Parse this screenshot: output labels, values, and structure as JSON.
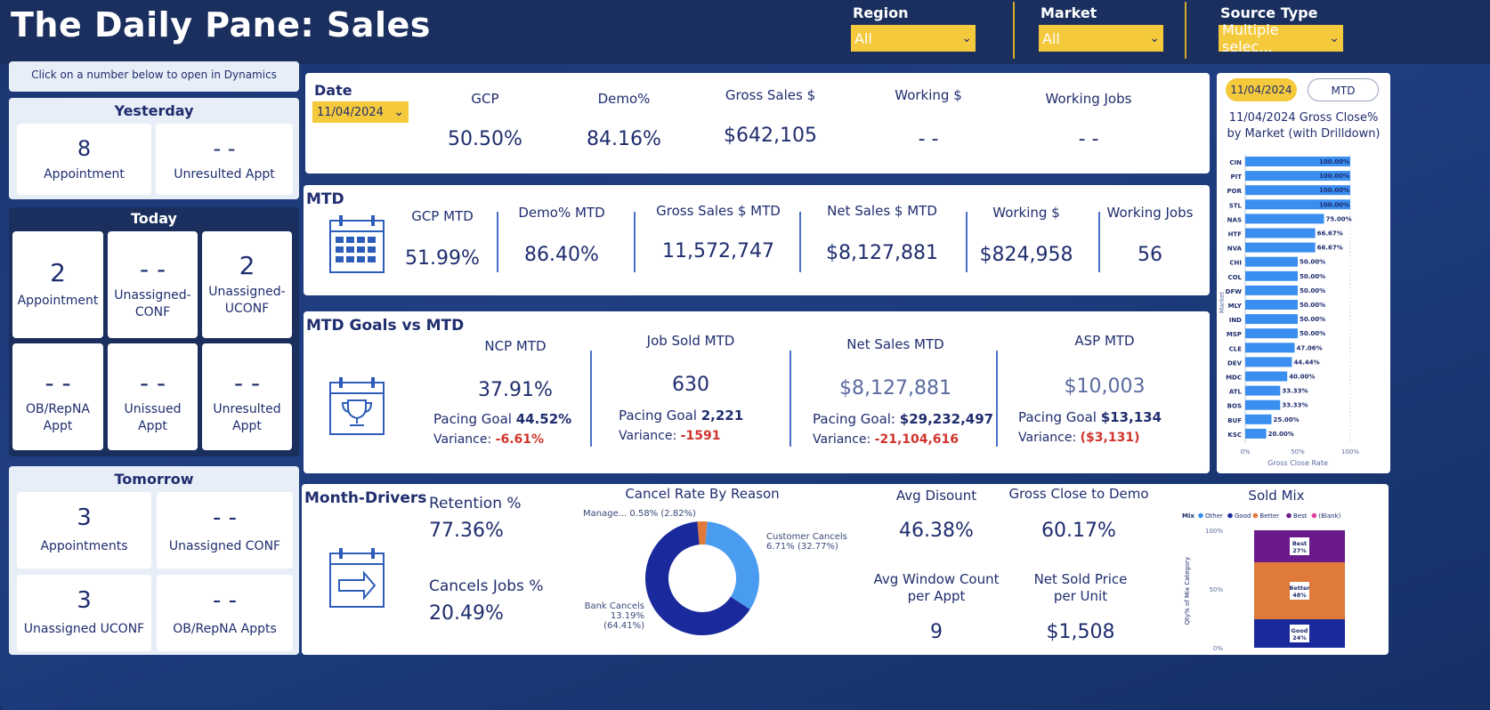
{
  "header": {
    "title": "The Daily Pane: Sales",
    "filters": [
      {
        "label": "Region",
        "value": "All"
      },
      {
        "label": "Market",
        "value": "All"
      },
      {
        "label": "Source Type",
        "value": "Multiple selec..."
      }
    ]
  },
  "left": {
    "hint": "Click on a number below to open in Dynamics",
    "yesterday": {
      "title": "Yesterday",
      "tiles": [
        {
          "value": "8",
          "label": "Appointment"
        },
        {
          "value": "- -",
          "label": "Unresulted Appt"
        }
      ]
    },
    "today": {
      "title": "Today",
      "tiles": [
        {
          "value": "2",
          "label": "Appointment"
        },
        {
          "value": "- -",
          "label": "Unassigned-\nCONF",
          "l1": "Unassigned-",
          "l2": "CONF"
        },
        {
          "value": "2",
          "label": "Unassigned-\nUCONF",
          "l1": "Unassigned-",
          "l2": "UCONF"
        },
        {
          "value": "- -",
          "l1": "OB/RepNA",
          "l2": "Appt"
        },
        {
          "value": "- -",
          "l1": "Unissued",
          "l2": "Appt"
        },
        {
          "value": "- -",
          "l1": "Unresulted",
          "l2": "Appt"
        }
      ]
    },
    "tomorrow": {
      "title": "Tomorrow",
      "tiles": [
        {
          "value": "3",
          "label": "Appointments"
        },
        {
          "value": "- -",
          "label": "Unassigned CONF"
        },
        {
          "value": "3",
          "label": "Unassigned UCONF"
        },
        {
          "value": "- -",
          "label": "OB/RepNA Appts"
        }
      ]
    }
  },
  "daily": {
    "date_label": "Date",
    "date_value": "11/04/2024",
    "kpis": [
      {
        "label": "GCP",
        "value": "50.50%"
      },
      {
        "label": "Demo%",
        "value": "84.16%"
      },
      {
        "label": "Gross Sales $",
        "value": "$642,105"
      },
      {
        "label": "Working $",
        "value": "- -"
      },
      {
        "label": "Working Jobs",
        "value": "- -"
      }
    ]
  },
  "mtd": {
    "title": "MTD",
    "kpis": [
      {
        "label": "GCP MTD",
        "value": "51.99%"
      },
      {
        "label": "Demo% MTD",
        "value": "86.40%"
      },
      {
        "label": "Gross Sales $ MTD",
        "value": "11,572,747"
      },
      {
        "label": "Net Sales $ MTD",
        "value": "$8,127,881"
      },
      {
        "label": "Working $",
        "value": "$824,958"
      },
      {
        "label": "Working Jobs",
        "value": "56"
      }
    ]
  },
  "goals": {
    "title": "MTD Goals vs MTD",
    "pacing_label": "Pacing Goal",
    "pacing_label_colon": "Pacing Goal:",
    "variance_label": "Variance:",
    "items": [
      {
        "label": "NCP MTD",
        "value": "37.91%",
        "pacing": "44.52%",
        "variance": "-6.61%"
      },
      {
        "label": "Job Sold MTD",
        "value": "630",
        "pacing": "2,221",
        "variance": "-1591"
      },
      {
        "label": "Net Sales MTD",
        "value": "$8,127,881",
        "pacing": "$29,232,497",
        "variance": "-21,104,616"
      },
      {
        "label": "ASP MTD",
        "value": "$10,003",
        "pacing": "$13,134",
        "variance": "($3,131)"
      }
    ]
  },
  "drivers": {
    "title": "Month-Drivers",
    "retention_label": "Retention %",
    "retention_value": "77.36%",
    "cancels_label": "Cancels Jobs %",
    "cancels_value": "20.49%",
    "donut_title": "Cancel Rate By Reason",
    "donut_labels": {
      "manage": "Manage... 0.58% (2.82%)",
      "customer_1": "Customer Cancels",
      "customer_2": "6.71% (32.77%)",
      "bank_1": "Bank Cancels",
      "bank_2": "13.19% (64.41%)"
    },
    "avg_discount_label": "Avg Disount",
    "avg_discount_value": "46.38%",
    "gross_close_label": "Gross Close to Demo",
    "gross_close_value": "60.17%",
    "avg_window_label_1": "Avg Window Count",
    "avg_window_label_2": "per Appt",
    "avg_window_value": "9",
    "net_sold_label_1": "Net Sold Price",
    "net_sold_label_2": "per Unit",
    "net_sold_value": "$1,508"
  },
  "colors": {
    "navy": "#1a2f5e",
    "accent_yellow": "#f5c93c",
    "bar_blue": "#3a8ef0",
    "donut_dark": "#1a2a9c",
    "donut_light": "#4a9cf0",
    "donut_orange": "#e07a3a",
    "variance_red": "#d0342c"
  },
  "market_chart": {
    "pill_date": "11/04/2024",
    "pill_mtd": "MTD",
    "title_1": "11/04/2024 Gross Close%",
    "title_2": "by Market (with Drilldown)",
    "ylabel": "Market",
    "xlabel": "Gross Close Rate",
    "xticks": [
      "0%",
      "50%",
      "100%"
    ]
  },
  "sold_mix_chart": {
    "title": "Sold Mix",
    "legend_title": "Mix",
    "ylabel": "Qty% of Mix Category",
    "yticks": [
      "0%",
      "50%",
      "100%"
    ]
  },
  "chart_data": [
    {
      "type": "bar",
      "orientation": "horizontal",
      "title": "11/04/2024 Gross Close% by Market (with Drilldown)",
      "xlabel": "Gross Close Rate",
      "ylabel": "Market",
      "xlim": [
        0,
        100
      ],
      "categories": [
        "CIN",
        "PIT",
        "POR",
        "STL",
        "NAS",
        "HTF",
        "NVA",
        "CHI",
        "COL",
        "DFW",
        "MLY",
        "IND",
        "MSP",
        "CLE",
        "DEV",
        "MDC",
        "ATL",
        "BOS",
        "BUF",
        "KSC"
      ],
      "values": [
        100,
        100,
        100,
        100,
        75,
        66.67,
        66.67,
        50,
        50,
        50,
        50,
        50,
        50,
        47.06,
        44.44,
        40,
        33.33,
        33.33,
        25,
        20
      ],
      "value_labels": [
        "100.00%",
        "100.00%",
        "100.00%",
        "100.00%",
        "75.00%",
        "66.67%",
        "66.67%",
        "50.00%",
        "50.00%",
        "50.00%",
        "50.00%",
        "50.00%",
        "50.00%",
        "47.06%",
        "44.44%",
        "40.00%",
        "33.33%",
        "33.33%",
        "25.00%",
        "20.00%"
      ],
      "grid": false
    },
    {
      "type": "pie",
      "variant": "donut",
      "title": "Cancel Rate By Reason",
      "slices": [
        {
          "name": "Bank Cancels",
          "value": 64.41
        },
        {
          "name": "Customer Cancels",
          "value": 32.77
        },
        {
          "name": "Manage...",
          "value": 2.82
        }
      ]
    },
    {
      "type": "bar",
      "variant": "stacked-100",
      "title": "Sold Mix",
      "ylabel": "Qty% of Mix Category",
      "legend": [
        "Other",
        "Good",
        "Better",
        "Best",
        "(Blank)"
      ],
      "legend_colors": [
        "#3a8ef0",
        "#1a2a9c",
        "#e07a3a",
        "#6a1a8a",
        "#e0409a"
      ],
      "series": [
        {
          "name": "Good",
          "values": [
            24
          ],
          "label": "24%"
        },
        {
          "name": "Better",
          "values": [
            48
          ],
          "label": "48%"
        },
        {
          "name": "Best",
          "values": [
            27
          ],
          "label": "27%"
        }
      ],
      "ylim": [
        0,
        100
      ]
    }
  ]
}
